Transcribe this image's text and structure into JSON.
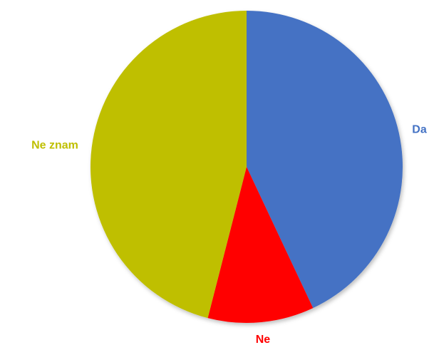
{
  "chart_data": {
    "type": "pie",
    "categories": [
      "Da",
      "Ne",
      "Ne znam"
    ],
    "values": [
      43,
      11,
      46
    ],
    "colors": [
      "#4472c4",
      "#ff0000",
      "#bfbf00"
    ],
    "start_angle": 0,
    "direction": "clockwise"
  }
}
